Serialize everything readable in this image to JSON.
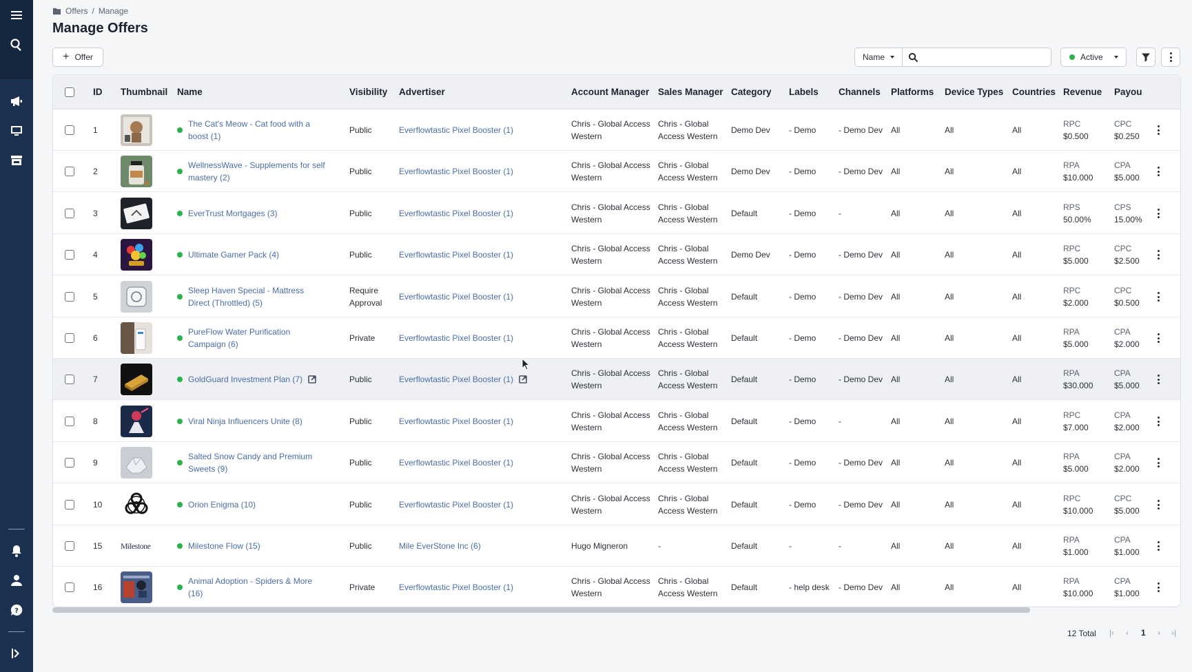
{
  "breadcrumb": {
    "root": "Offers",
    "separator": "/",
    "current": "Manage"
  },
  "page_title": "Manage Offers",
  "toolbar": {
    "add_offer_label": "Offer",
    "search_field_select": "Name",
    "search_placeholder": "",
    "status_filter": "Active"
  },
  "columns": {
    "id": "ID",
    "thumbnail": "Thumbnail",
    "name": "Name",
    "visibility": "Visibility",
    "advertiser": "Advertiser",
    "account_manager": "Account Manager",
    "sales_manager": "Sales Manager",
    "category": "Category",
    "labels": "Labels",
    "channels": "Channels",
    "platforms": "Platforms",
    "device_types": "Device Types",
    "countries": "Countries",
    "revenue": "Revenue",
    "payout": "Payou"
  },
  "rows": [
    {
      "id": "1",
      "name1": "The Cat's Meow - Cat food with a",
      "name2": "boost (1)",
      "vis1": "Public",
      "vis2": "",
      "advertiser": "Everflowtastic Pixel Booster (1)",
      "am1": "Chris - Global Access",
      "am2": "Western",
      "sm1": "Chris - Global",
      "sm2": "Access Western",
      "category": "Demo Dev",
      "labels": "- Demo",
      "channels": "- Demo Dev",
      "platforms": "All",
      "devices": "All",
      "countries": "All",
      "rev_type": "RPC",
      "rev_val": "$0.500",
      "pay_type": "CPC",
      "pay_val": "$0.250"
    },
    {
      "id": "2",
      "name1": "WellnessWave - Supplements for self",
      "name2": "mastery (2)",
      "vis1": "Public",
      "vis2": "",
      "advertiser": "Everflowtastic Pixel Booster (1)",
      "am1": "Chris - Global Access",
      "am2": "Western",
      "sm1": "Chris - Global",
      "sm2": "Access Western",
      "category": "Demo Dev",
      "labels": "- Demo",
      "channels": "- Demo Dev",
      "platforms": "All",
      "devices": "All",
      "countries": "All",
      "rev_type": "RPA",
      "rev_val": "$10.000",
      "pay_type": "CPA",
      "pay_val": "$5.000"
    },
    {
      "id": "3",
      "name1": "EverTrust Mortgages (3)",
      "name2": "",
      "vis1": "Public",
      "vis2": "",
      "advertiser": "Everflowtastic Pixel Booster (1)",
      "am1": "Chris - Global Access",
      "am2": "Western",
      "sm1": "Chris - Global",
      "sm2": "Access Western",
      "category": "Default",
      "labels": "- Demo",
      "channels": "-",
      "platforms": "All",
      "devices": "All",
      "countries": "All",
      "rev_type": "RPS",
      "rev_val": "50.00%",
      "pay_type": "CPS",
      "pay_val": "15.00%"
    },
    {
      "id": "4",
      "name1": "Ultimate Gamer Pack (4)",
      "name2": "",
      "vis1": "Public",
      "vis2": "",
      "advertiser": "Everflowtastic Pixel Booster (1)",
      "am1": "Chris - Global Access",
      "am2": "Western",
      "sm1": "Chris - Global",
      "sm2": "Access Western",
      "category": "Demo Dev",
      "labels": "- Demo",
      "channels": "- Demo Dev",
      "platforms": "All",
      "devices": "All",
      "countries": "All",
      "rev_type": "RPC",
      "rev_val": "$5.000",
      "pay_type": "CPC",
      "pay_val": "$2.500"
    },
    {
      "id": "5",
      "name1": "Sleep Haven Special - Mattress",
      "name2": "Direct (Throttled) (5)",
      "vis1": "Require",
      "vis2": "Approval",
      "advertiser": "Everflowtastic Pixel Booster (1)",
      "am1": "Chris - Global Access",
      "am2": "Western",
      "sm1": "Chris - Global",
      "sm2": "Access Western",
      "category": "Default",
      "labels": "- Demo",
      "channels": "- Demo Dev",
      "platforms": "All",
      "devices": "All",
      "countries": "All",
      "rev_type": "RPC",
      "rev_val": "$2.000",
      "pay_type": "CPC",
      "pay_val": "$0.500"
    },
    {
      "id": "6",
      "name1": "PureFlow Water Purification",
      "name2": "Campaign (6)",
      "vis1": "Private",
      "vis2": "",
      "advertiser": "Everflowtastic Pixel Booster (1)",
      "am1": "Chris - Global Access",
      "am2": "Western",
      "sm1": "Chris - Global",
      "sm2": "Access Western",
      "category": "Default",
      "labels": "- Demo",
      "channels": "- Demo Dev",
      "platforms": "All",
      "devices": "All",
      "countries": "All",
      "rev_type": "RPA",
      "rev_val": "$5.000",
      "pay_type": "CPA",
      "pay_val": "$2.000"
    },
    {
      "id": "7",
      "name1": "GoldGuard Investment Plan (7)",
      "name2": "",
      "vis1": "Public",
      "vis2": "",
      "advertiser": "Everflowtastic Pixel Booster (1)",
      "am1": "Chris - Global Access",
      "am2": "Western",
      "sm1": "Chris - Global",
      "sm2": "Access Western",
      "category": "Default",
      "labels": "- Demo",
      "channels": "- Demo Dev",
      "platforms": "All",
      "devices": "All",
      "countries": "All",
      "rev_type": "RPA",
      "rev_val": "$30.000",
      "pay_type": "CPA",
      "pay_val": "$5.000"
    },
    {
      "id": "8",
      "name1": "Viral Ninja Influencers Unite (8)",
      "name2": "",
      "vis1": "Public",
      "vis2": "",
      "advertiser": "Everflowtastic Pixel Booster (1)",
      "am1": "Chris - Global Access",
      "am2": "Western",
      "sm1": "Chris - Global",
      "sm2": "Access Western",
      "category": "Default",
      "labels": "- Demo",
      "channels": "-",
      "platforms": "All",
      "devices": "All",
      "countries": "All",
      "rev_type": "RPC",
      "rev_val": "$7.000",
      "pay_type": "CPA",
      "pay_val": "$2.000"
    },
    {
      "id": "9",
      "name1": "Salted Snow Candy and Premium",
      "name2": "Sweets (9)",
      "vis1": "Public",
      "vis2": "",
      "advertiser": "Everflowtastic Pixel Booster (1)",
      "am1": "Chris - Global Access",
      "am2": "Western",
      "sm1": "Chris - Global",
      "sm2": "Access Western",
      "category": "Default",
      "labels": "- Demo",
      "channels": "- Demo Dev",
      "platforms": "All",
      "devices": "All",
      "countries": "All",
      "rev_type": "RPA",
      "rev_val": "$5.000",
      "pay_type": "CPA",
      "pay_val": "$2.000"
    },
    {
      "id": "10",
      "name1": "Orion Enigma (10)",
      "name2": "",
      "vis1": "Public",
      "vis2": "",
      "advertiser": "Everflowtastic Pixel Booster (1)",
      "am1": "Chris - Global Access",
      "am2": "Western",
      "sm1": "Chris - Global",
      "sm2": "Access Western",
      "category": "Default",
      "labels": "- Demo",
      "channels": "- Demo Dev",
      "platforms": "All",
      "devices": "All",
      "countries": "All",
      "rev_type": "RPC",
      "rev_val": "$10.000",
      "pay_type": "CPC",
      "pay_val": "$5.000"
    },
    {
      "id": "15",
      "name1": "Milestone Flow (15)",
      "name2": "",
      "vis1": "Public",
      "vis2": "",
      "advertiser": "Mile EverStone Inc (6)",
      "am1": "Hugo Migneron",
      "am2": "",
      "sm1": "-",
      "sm2": "",
      "category": "Default",
      "labels": "-",
      "channels": "-",
      "platforms": "All",
      "devices": "All",
      "countries": "All",
      "rev_type": "RPA",
      "rev_val": "$1.000",
      "pay_type": "CPA",
      "pay_val": "$1.000"
    },
    {
      "id": "16",
      "name1": "Animal Adoption - Spiders & More",
      "name2": "(16)",
      "vis1": "Private",
      "vis2": "",
      "advertiser": "Everflowtastic Pixel Booster (1)",
      "am1": "Chris - Global Access",
      "am2": "Western",
      "sm1": "Chris - Global",
      "sm2": "Access Western",
      "category": "Default",
      "labels": "- help desk",
      "channels": "- Demo Dev",
      "platforms": "All",
      "devices": "All",
      "countries": "All",
      "rev_type": "RPA",
      "rev_val": "$10.000",
      "pay_type": "CPA",
      "pay_val": "$1.000"
    }
  ],
  "thumb_logo_text": "Milestone",
  "pagination": {
    "total": "12 Total",
    "current_page": "1"
  },
  "colors": {
    "sidebar": "#1c3050",
    "link": "#4a6da7",
    "active_dot": "#2bb24c"
  }
}
